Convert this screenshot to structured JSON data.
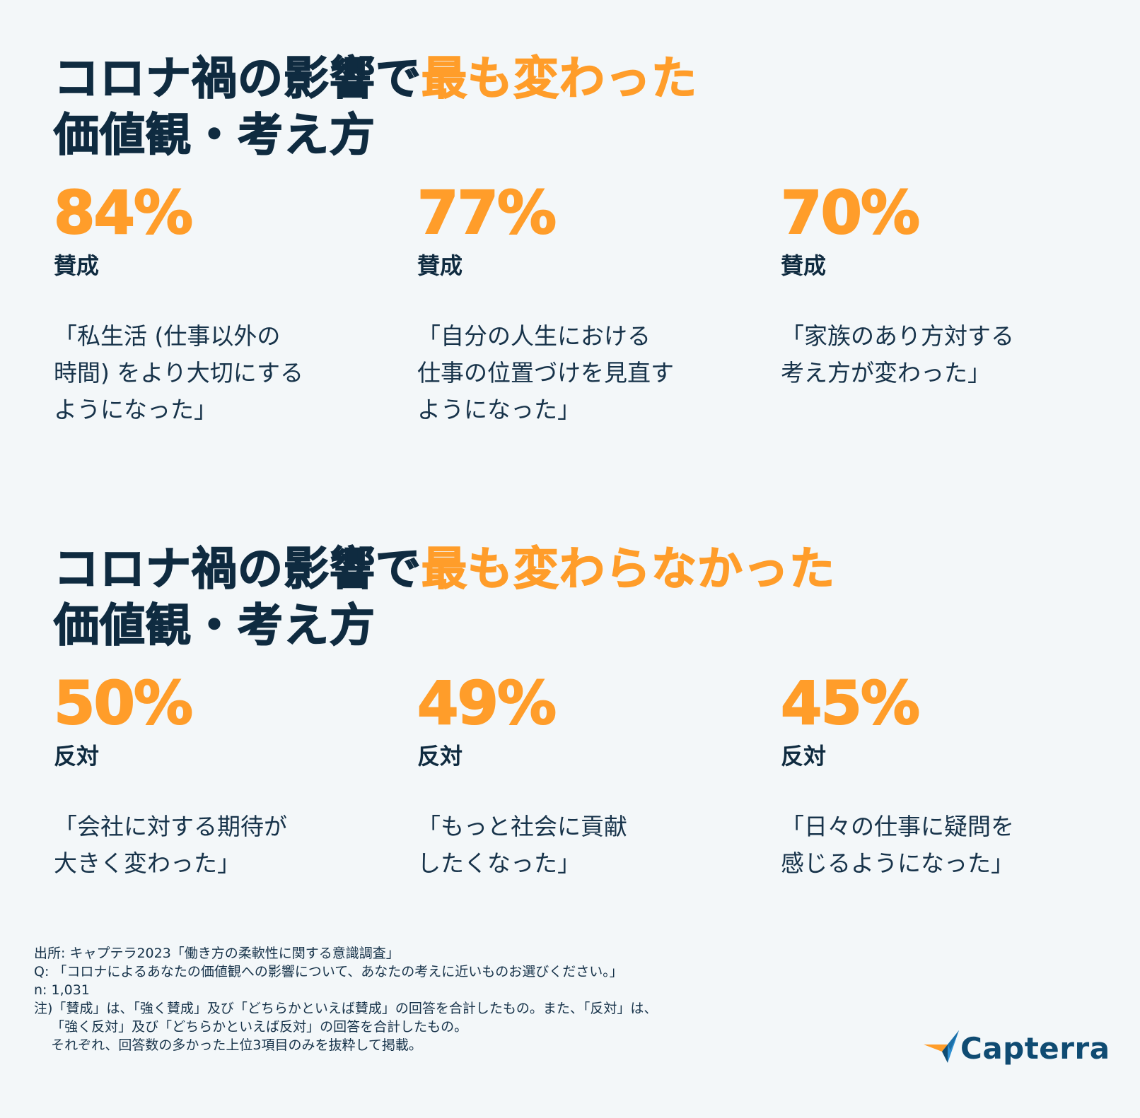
{
  "section1": {
    "title_line1_dark": "コロナ禍の影響で",
    "title_line1_highlight": "最も変わった",
    "title_line2": "価値観・考え方",
    "stats": [
      {
        "percent": "84%",
        "verdict": "賛成",
        "quote": "「私生活 (仕事以外の\n時間) をより大切にする\nようになった」"
      },
      {
        "percent": "77%",
        "verdict": "賛成",
        "quote": "「自分の人生における\n仕事の位置づけを見直す\nようになった」"
      },
      {
        "percent": "70%",
        "verdict": "賛成",
        "quote": "「家族のあり方対する\n考え方が変わった」"
      }
    ]
  },
  "section2": {
    "title_line1_dark": "コロナ禍の影響で",
    "title_line1_highlight": "最も変わらなかった",
    "title_line2": "価値観・考え方",
    "stats": [
      {
        "percent": "50%",
        "verdict": "反対",
        "quote": "「会社に対する期待が\n大きく変わった」"
      },
      {
        "percent": "49%",
        "verdict": "反対",
        "quote": "「もっと社会に貢献\nしたくなった」"
      },
      {
        "percent": "45%",
        "verdict": "反対",
        "quote": "「日々の仕事に疑問を\n感じるようになった」"
      }
    ]
  },
  "footnote": {
    "source": "出所: キャプテラ2023「働き方の柔軟性に関する意識調査」",
    "question": "Q: 「コロナによるあなたの価値観への影響について、あなたの考えに近いものお選びください。」",
    "sample": "n: 1,031",
    "note1": "注)「賛成」は、「強く賛成」及び「どちらかといえば賛成」の回答を合計したもの。また、「反対」は、",
    "note2": "    「強く反対」及び「どちらかといえば反対」の回答を合計したもの。",
    "note3": "    それぞれ、回答数の多かった上位3項目のみを抜粋して掲載。"
  },
  "logo": {
    "text": "Capterra",
    "icon": "capterra-arrow-icon",
    "colors": {
      "orange": "#ff9d2a",
      "blue": "#0f4b72",
      "light_blue": "#2e8fd1"
    }
  },
  "colors": {
    "background": "#f3f7f9",
    "dark_text": "#0f2b40",
    "accent": "#ff9d2a"
  }
}
